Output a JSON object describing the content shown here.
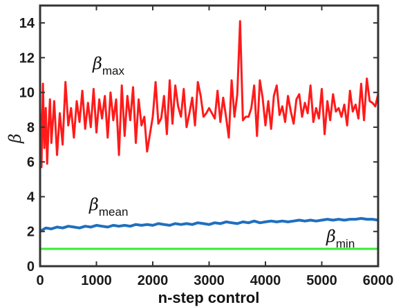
{
  "chart_data": {
    "type": "line",
    "xlabel": "n-step control",
    "ylabel": "β",
    "xlim": [
      0,
      6000
    ],
    "ylim": [
      0,
      15
    ],
    "xticks": [
      "0",
      "1000",
      "2000",
      "3000",
      "4000",
      "5000",
      "6000"
    ],
    "yticks": [
      "0",
      "2",
      "4",
      "6",
      "8",
      "10",
      "12",
      "14"
    ],
    "grid": false,
    "annotations": [
      {
        "symbol": "β",
        "sub": "max",
        "x": 1600,
        "y": 11.3,
        "series": "max"
      },
      {
        "symbol": "β",
        "sub": "mean",
        "x": 1450,
        "y": 3.2,
        "series": "mean"
      },
      {
        "symbol": "β",
        "sub": "min",
        "x": 4850,
        "y": 1.3,
        "series": "min"
      }
    ],
    "series": [
      {
        "color": "#ff1a1a",
        "x": [
          0,
          25,
          50,
          75,
          100,
          125,
          150,
          175,
          200,
          250,
          300,
          350,
          400,
          450,
          500,
          550,
          600,
          650,
          700,
          750,
          800,
          850,
          900,
          950,
          1000,
          1050,
          1100,
          1150,
          1200,
          1250,
          1300,
          1350,
          1400,
          1450,
          1500,
          1550,
          1600,
          1650,
          1700,
          1750,
          1800,
          1850,
          1900,
          1950,
          2000,
          2050,
          2100,
          2150,
          2200,
          2250,
          2300,
          2350,
          2400,
          2450,
          2500,
          2550,
          2600,
          2650,
          2700,
          2750,
          2800,
          2850,
          2900,
          2950,
          3000,
          3050,
          3100,
          3150,
          3200,
          3250,
          3300,
          3350,
          3400,
          3450,
          3500,
          3550,
          3600,
          3650,
          3700,
          3750,
          3800,
          3850,
          3900,
          3950,
          4000,
          4050,
          4100,
          4150,
          4200,
          4250,
          4300,
          4350,
          4400,
          4450,
          4500,
          4550,
          4600,
          4650,
          4700,
          4750,
          4800,
          4850,
          4900,
          4950,
          5000,
          5050,
          5100,
          5150,
          5200,
          5250,
          5300,
          5350,
          5400,
          5450,
          5500,
          5550,
          5600,
          5650,
          5700,
          5750,
          5800,
          5850,
          5900,
          5950,
          6000
        ],
        "values": [
          9.2,
          5.7,
          10.5,
          6.8,
          9.1,
          5.9,
          8.0,
          9.6,
          7.1,
          9.5,
          6.4,
          8.8,
          7.0,
          10.6,
          8.1,
          9.1,
          7.4,
          9.5,
          8.3,
          10.1,
          7.9,
          9.4,
          8.0,
          10.2,
          7.7,
          9.6,
          8.5,
          9.8,
          7.4,
          10.0,
          8.4,
          9.6,
          6.4,
          10.4,
          7.5,
          9.8,
          8.4,
          10.3,
          7.1,
          9.6,
          8.1,
          8.6,
          6.6,
          7.6,
          8.6,
          10.6,
          8.2,
          8.5,
          9.8,
          7.6,
          10.7,
          8.2,
          10.4,
          9.2,
          8.6,
          10.2,
          8.0,
          8.8,
          9.7,
          8.1,
          10.6,
          9.8,
          8.6,
          8.8,
          9.1,
          8.8,
          8.5,
          10.1,
          8.3,
          9.7,
          8.6,
          7.4,
          10.7,
          8.6,
          9.9,
          14.1,
          8.4,
          8.6,
          8.6,
          9.1,
          10.4,
          7.5,
          10.7,
          9.7,
          8.1,
          9.5,
          7.9,
          9.8,
          10.4,
          8.7,
          9.2,
          8.3,
          9.8,
          8.9,
          8.2,
          9.6,
          9.9,
          8.6,
          9.4,
          8.8,
          10.4,
          8.3,
          9.1,
          8.5,
          10.2,
          7.6,
          9.5,
          8.4,
          9.9,
          8.9,
          9.1,
          8.6,
          9.3,
          8.1,
          10.1,
          8.9,
          9.3,
          8.5,
          10.5,
          8.4,
          10.8,
          9.5,
          9.4,
          9.2,
          9.9
        ]
      },
      {
        "color": "#1f6fbf",
        "x": [
          0,
          100,
          200,
          300,
          400,
          500,
          600,
          700,
          800,
          900,
          1000,
          1100,
          1200,
          1300,
          1400,
          1500,
          1600,
          1700,
          1800,
          1900,
          2000,
          2100,
          2200,
          2300,
          2400,
          2500,
          2600,
          2700,
          2800,
          2900,
          3000,
          3100,
          3200,
          3300,
          3400,
          3500,
          3600,
          3700,
          3800,
          3900,
          4000,
          4100,
          4200,
          4300,
          4400,
          4500,
          4600,
          4700,
          4800,
          4900,
          5000,
          5100,
          5200,
          5300,
          5400,
          5500,
          5600,
          5700,
          5800,
          5900,
          6000
        ],
        "values": [
          2.0,
          2.2,
          2.15,
          2.25,
          2.2,
          2.3,
          2.25,
          2.2,
          2.3,
          2.25,
          2.35,
          2.3,
          2.25,
          2.35,
          2.3,
          2.35,
          2.3,
          2.4,
          2.35,
          2.4,
          2.35,
          2.45,
          2.4,
          2.35,
          2.45,
          2.4,
          2.45,
          2.4,
          2.5,
          2.45,
          2.4,
          2.5,
          2.45,
          2.55,
          2.5,
          2.45,
          2.55,
          2.5,
          2.6,
          2.5,
          2.55,
          2.6,
          2.55,
          2.6,
          2.55,
          2.6,
          2.65,
          2.6,
          2.65,
          2.6,
          2.65,
          2.7,
          2.65,
          2.7,
          2.65,
          2.7,
          2.7,
          2.75,
          2.7,
          2.7,
          2.65
        ]
      },
      {
        "color": "#33ee33",
        "x": [
          0,
          6000
        ],
        "values": [
          1.0,
          1.0
        ]
      }
    ]
  }
}
